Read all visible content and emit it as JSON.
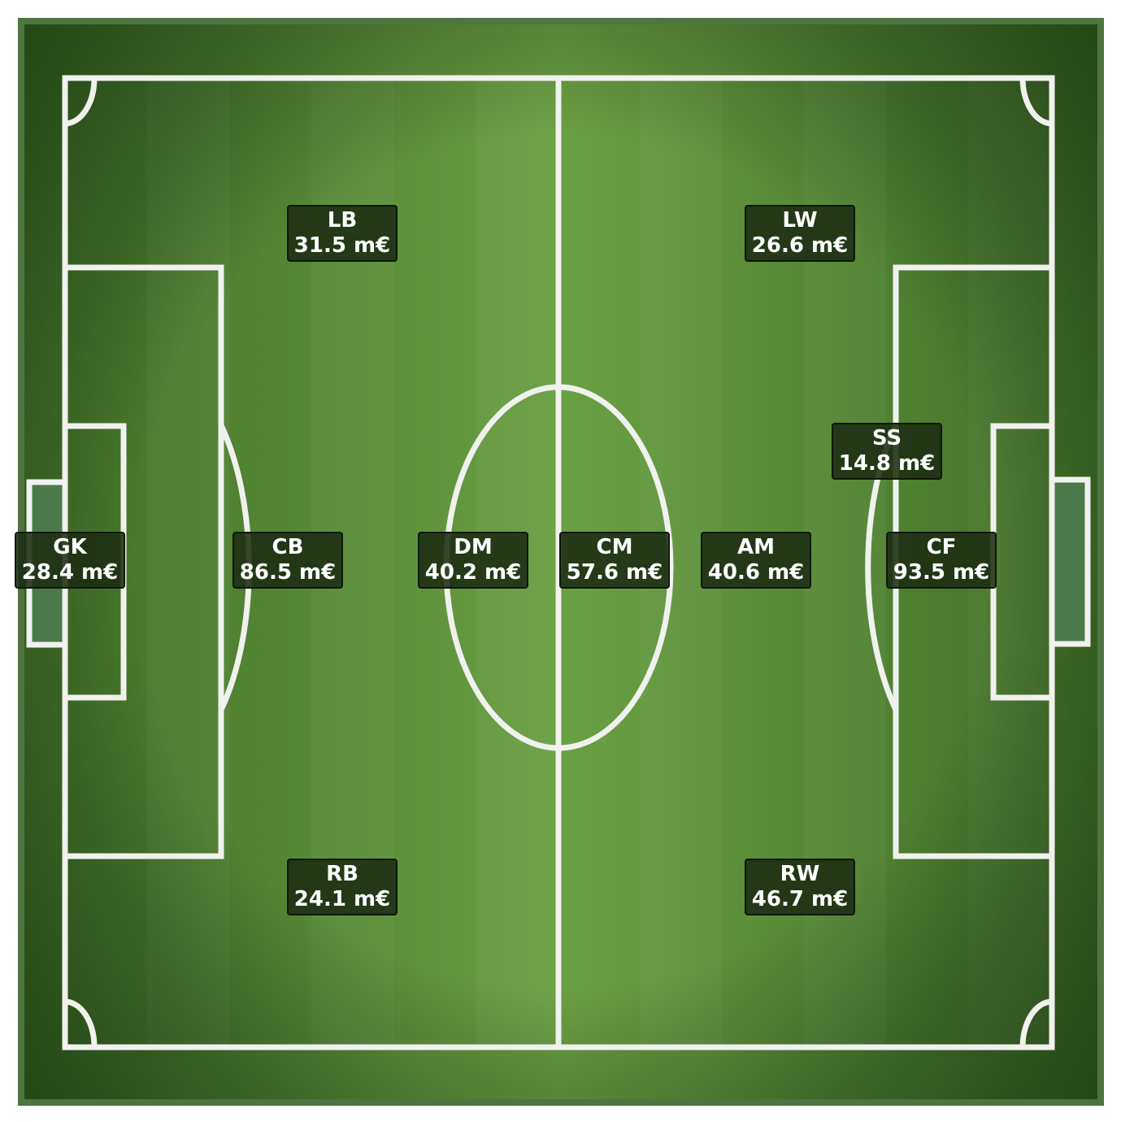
{
  "colors": {
    "outer_border": "#4e7440",
    "grass_dark": "#3d6e26",
    "grass_light": "#6aa044",
    "lines": "#f1f1ee",
    "label_bg": "#1c2c12"
  },
  "positions": [
    {
      "code": "GK",
      "value": "28.4 m€"
    },
    {
      "code": "LB",
      "value": "31.5 m€"
    },
    {
      "code": "CB",
      "value": "86.5 m€"
    },
    {
      "code": "RB",
      "value": "24.1 m€"
    },
    {
      "code": "DM",
      "value": "40.2 m€"
    },
    {
      "code": "CM",
      "value": "57.6 m€"
    },
    {
      "code": "AM",
      "value": "40.6 m€"
    },
    {
      "code": "LW",
      "value": "26.6 m€"
    },
    {
      "code": "RW",
      "value": "46.7 m€"
    },
    {
      "code": "SS",
      "value": "14.8 m€"
    },
    {
      "code": "CF",
      "value": "93.5 m€"
    }
  ]
}
